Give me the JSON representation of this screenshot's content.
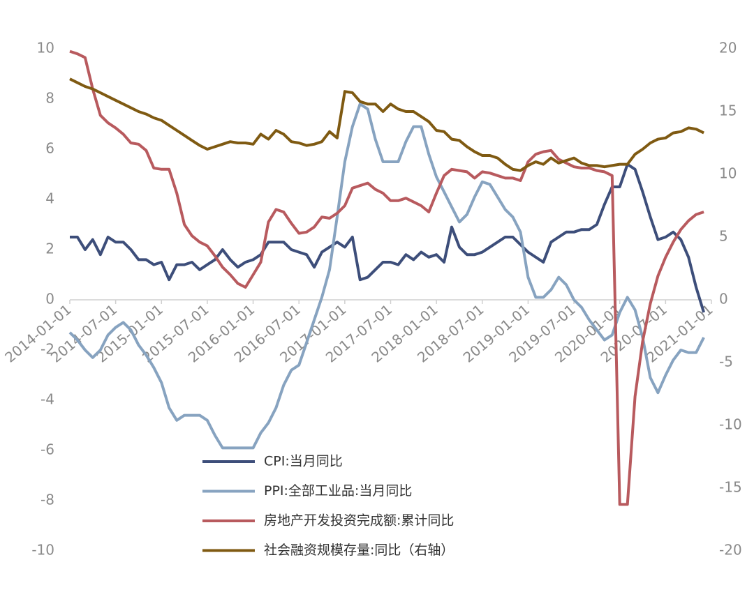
{
  "chart_data": {
    "type": "line",
    "categories": [
      "2014-01-01",
      null,
      null,
      null,
      null,
      null,
      "2014-07-01",
      null,
      null,
      null,
      null,
      null,
      "2015-01-01",
      null,
      null,
      null,
      null,
      null,
      "2015-07-01",
      null,
      null,
      null,
      null,
      null,
      "2016-01-01",
      null,
      null,
      null,
      null,
      null,
      "2016-07-01",
      null,
      null,
      null,
      null,
      null,
      "2017-01-01",
      null,
      null,
      null,
      null,
      null,
      "2017-07-01",
      null,
      null,
      null,
      null,
      null,
      "2018-01-01",
      null,
      null,
      null,
      null,
      null,
      "2018-07-01",
      null,
      null,
      null,
      null,
      null,
      "2019-01-01",
      null,
      null,
      null,
      null,
      null,
      "2019-07-01",
      null,
      null,
      null,
      null,
      null,
      "2020-01-01",
      null,
      null,
      null,
      null,
      null,
      "2020-07-01",
      null,
      null,
      null,
      null,
      null,
      "2021-01-01"
    ],
    "series": [
      {
        "name": "CPI:当月同比",
        "color": "#3d4e7a",
        "values": [
          2.5,
          2.5,
          2.0,
          2.4,
          1.8,
          2.5,
          2.3,
          2.3,
          2.0,
          1.6,
          1.6,
          1.4,
          1.5,
          0.8,
          1.4,
          1.4,
          1.5,
          1.2,
          1.4,
          1.6,
          2.0,
          1.6,
          1.3,
          1.5,
          1.6,
          1.8,
          2.3,
          2.3,
          2.3,
          2.0,
          1.9,
          1.8,
          1.3,
          1.9,
          2.1,
          2.3,
          2.1,
          2.5,
          0.8,
          0.9,
          1.2,
          1.5,
          1.5,
          1.4,
          1.8,
          1.6,
          1.9,
          1.7,
          1.8,
          1.5,
          2.9,
          2.1,
          1.8,
          1.8,
          1.9,
          2.1,
          2.3,
          2.5,
          2.5,
          2.2,
          1.9,
          1.7,
          1.5,
          2.3,
          2.5,
          2.7,
          2.7,
          2.8,
          2.8,
          3.0,
          3.8,
          4.5,
          4.5,
          5.4,
          5.2,
          4.3,
          3.3,
          2.4,
          2.5,
          2.7,
          2.4,
          1.7,
          0.5,
          -0.5,
          null
        ]
      },
      {
        "name": "PPI:全部工业品:当月同比",
        "color": "#87a3c0",
        "values": [
          -1.3,
          -1.6,
          -2.0,
          -2.3,
          -2.0,
          -1.4,
          -1.1,
          -0.9,
          -1.2,
          -1.8,
          -2.2,
          -2.7,
          -3.3,
          -4.3,
          -4.8,
          -4.6,
          -4.6,
          -4.6,
          -4.8,
          -5.4,
          -5.9,
          -5.9,
          -5.9,
          -5.9,
          -5.9,
          -5.3,
          -4.9,
          -4.3,
          -3.4,
          -2.8,
          -2.6,
          -1.7,
          -0.8,
          0.1,
          1.2,
          3.3,
          5.5,
          6.9,
          7.8,
          7.6,
          6.4,
          5.5,
          5.5,
          5.5,
          6.3,
          6.9,
          6.9,
          5.8,
          4.9,
          4.3,
          3.7,
          3.1,
          3.4,
          4.1,
          4.7,
          4.6,
          4.1,
          3.6,
          3.3,
          2.7,
          0.9,
          0.1,
          0.1,
          0.4,
          0.9,
          0.6,
          0,
          -0.3,
          -0.8,
          -1.2,
          -1.6,
          -1.4,
          -0.5,
          0.1,
          -0.4,
          -1.5,
          -3.1,
          -3.7,
          -3.0,
          -2.4,
          -2.0,
          -2.1,
          -2.1,
          -1.5,
          null
        ]
      },
      {
        "name": "房地产开发投资完成额:累计同比",
        "color": "#b85a5e",
        "axis": "y2",
        "values": [
          19.8,
          19.6,
          19.3,
          16.8,
          14.7,
          14.1,
          13.7,
          13.2,
          12.5,
          12.4,
          11.9,
          10.5,
          10.4,
          10.4,
          8.5,
          6.0,
          5.1,
          4.6,
          4.3,
          3.5,
          2.6,
          2.0,
          1.3,
          1.0,
          2.0,
          3.0,
          6.2,
          7.2,
          7.0,
          6.1,
          5.3,
          5.4,
          5.8,
          6.6,
          6.5,
          6.9,
          7.5,
          8.9,
          9.1,
          9.3,
          8.8,
          8.5,
          7.9,
          7.9,
          8.1,
          7.8,
          7.5,
          7.0,
          8.5,
          9.9,
          10.4,
          10.3,
          10.2,
          9.7,
          10.2,
          10.1,
          9.9,
          9.7,
          9.7,
          9.5,
          11.0,
          11.6,
          11.8,
          11.9,
          11.2,
          10.9,
          10.6,
          10.5,
          10.5,
          10.3,
          10.2,
          9.9,
          -16.3,
          -16.3,
          -7.7,
          -3.3,
          -0.3,
          1.9,
          3.4,
          4.6,
          5.6,
          6.3,
          6.8,
          7.0,
          null
        ]
      },
      {
        "name": "社会融资规模存量:同比（右轴）",
        "color": "#7f5a12",
        "axis": "y2",
        "values": [
          17.6,
          17.3,
          17.0,
          16.8,
          16.5,
          16.2,
          15.9,
          15.6,
          15.3,
          15.0,
          14.8,
          14.5,
          14.3,
          13.9,
          13.5,
          13.1,
          12.7,
          12.3,
          12.0,
          12.2,
          12.4,
          12.6,
          12.5,
          12.5,
          12.4,
          13.2,
          12.8,
          13.5,
          13.2,
          12.6,
          12.5,
          12.3,
          12.4,
          12.6,
          13.4,
          12.9,
          16.6,
          16.5,
          15.8,
          15.6,
          15.6,
          15.0,
          15.6,
          15.2,
          15.0,
          15.0,
          14.6,
          14.2,
          13.5,
          13.4,
          12.8,
          12.7,
          12.2,
          11.8,
          11.5,
          11.5,
          11.3,
          10.8,
          10.4,
          10.3,
          10.7,
          11.0,
          10.8,
          11.3,
          10.9,
          11.1,
          11.3,
          10.9,
          10.7,
          10.7,
          10.6,
          10.7,
          10.8,
          10.8,
          11.6,
          12.0,
          12.5,
          12.8,
          12.9,
          13.3,
          13.4,
          13.7,
          13.6,
          13.3,
          null
        ]
      }
    ],
    "ylim": [
      -10,
      10
    ],
    "yticks": [
      -10,
      -8,
      -6,
      -4,
      -2,
      0,
      2,
      4,
      6,
      8,
      10
    ],
    "y2lim": [
      -20,
      20
    ],
    "y2ticks": [
      -20,
      -15,
      -10,
      -5,
      0,
      5,
      10,
      15,
      20
    ]
  }
}
